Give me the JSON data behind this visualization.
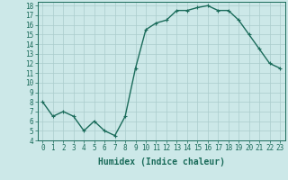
{
  "x": [
    0,
    1,
    2,
    3,
    4,
    5,
    6,
    7,
    8,
    9,
    10,
    11,
    12,
    13,
    14,
    15,
    16,
    17,
    18,
    19,
    20,
    21,
    22,
    23
  ],
  "y": [
    8.0,
    6.5,
    7.0,
    6.5,
    5.0,
    6.0,
    5.0,
    4.5,
    6.5,
    11.5,
    15.5,
    16.2,
    16.5,
    17.5,
    17.5,
    17.8,
    18.0,
    17.5,
    17.5,
    16.5,
    15.0,
    13.5,
    12.0,
    11.5
  ],
  "line_color": "#1a6b5a",
  "marker": "+",
  "marker_size": 3,
  "bg_color": "#cce8e8",
  "grid_color": "#aacccc",
  "xlabel": "Humidex (Indice chaleur)",
  "xlim": [
    -0.5,
    23.5
  ],
  "ylim": [
    4,
    18.4
  ],
  "yticks": [
    4,
    5,
    6,
    7,
    8,
    9,
    10,
    11,
    12,
    13,
    14,
    15,
    16,
    17,
    18
  ],
  "xticks": [
    0,
    1,
    2,
    3,
    4,
    5,
    6,
    7,
    8,
    9,
    10,
    11,
    12,
    13,
    14,
    15,
    16,
    17,
    18,
    19,
    20,
    21,
    22,
    23
  ],
  "tick_fontsize": 5.5,
  "xlabel_fontsize": 7,
  "linewidth": 1.0,
  "markeredgewidth": 0.8
}
